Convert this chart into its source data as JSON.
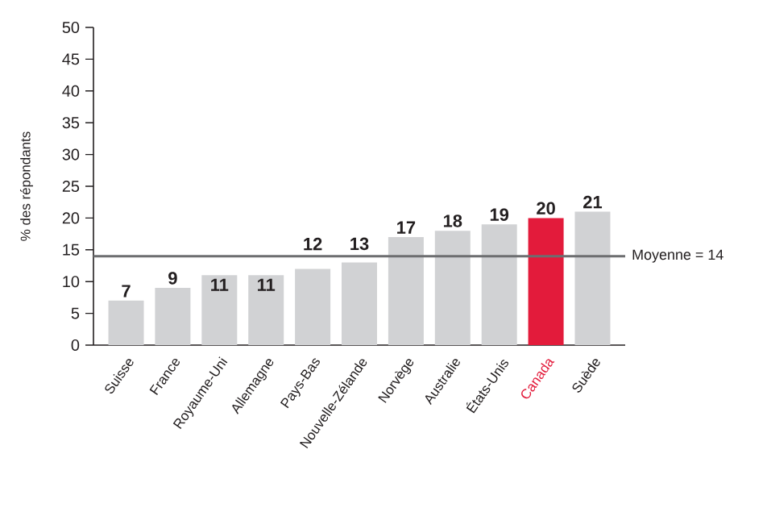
{
  "chart_data": {
    "type": "bar",
    "ylabel": "% des répondants",
    "categories": [
      "Suisse",
      "France",
      "Royaume-Uni",
      "Allemagne",
      "Pays-Bas",
      "Nouvelle-Zélande",
      "Norvège",
      "Australie",
      "États-Unis",
      "Canada",
      "Suède"
    ],
    "values": [
      7,
      9,
      11,
      11,
      12,
      13,
      17,
      18,
      19,
      20,
      21
    ],
    "colors": [
      "#d1d2d4",
      "#d1d2d4",
      "#d1d2d4",
      "#d1d2d4",
      "#d1d2d4",
      "#d1d2d4",
      "#d1d2d4",
      "#d1d2d4",
      "#d1d2d4",
      "#e31b3b",
      "#d1d2d4"
    ],
    "ylim": [
      0,
      50
    ],
    "yticks": [
      0,
      5,
      10,
      15,
      20,
      25,
      30,
      35,
      40,
      45,
      50
    ],
    "data_labels": true,
    "grid": false,
    "ref_lines": [
      {
        "axis": "y",
        "value": 14,
        "label": "Moyenne = 14",
        "color": "#6d6e70",
        "line_style": "solid"
      }
    ]
  }
}
